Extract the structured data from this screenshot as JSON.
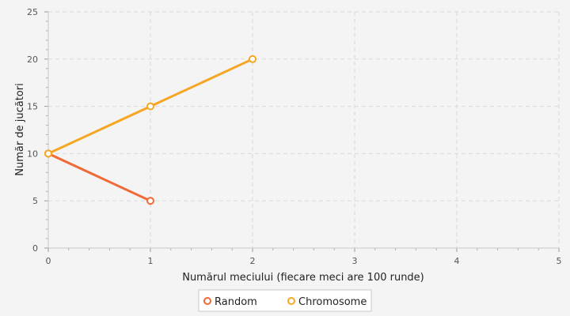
{
  "chart_data": {
    "type": "line",
    "xlabel": "Numărul meciului (fiecare meci are 100 runde)",
    "ylabel": "Număr de jucători",
    "xlim": [
      0,
      5
    ],
    "ylim": [
      0,
      25
    ],
    "xticks": [
      "0",
      "1",
      "2",
      "3",
      "4",
      "5"
    ],
    "yticks": [
      "0",
      "5",
      "10",
      "15",
      "20",
      "25"
    ],
    "grid": true,
    "legend_position": "bottom",
    "series": [
      {
        "name": "Random",
        "color": "#f06a35",
        "x": [
          0,
          1
        ],
        "y": [
          10,
          5
        ]
      },
      {
        "name": "Chromosome",
        "color": "#f5a623",
        "x": [
          0,
          1,
          2
        ],
        "y": [
          10,
          15,
          20
        ]
      }
    ]
  }
}
